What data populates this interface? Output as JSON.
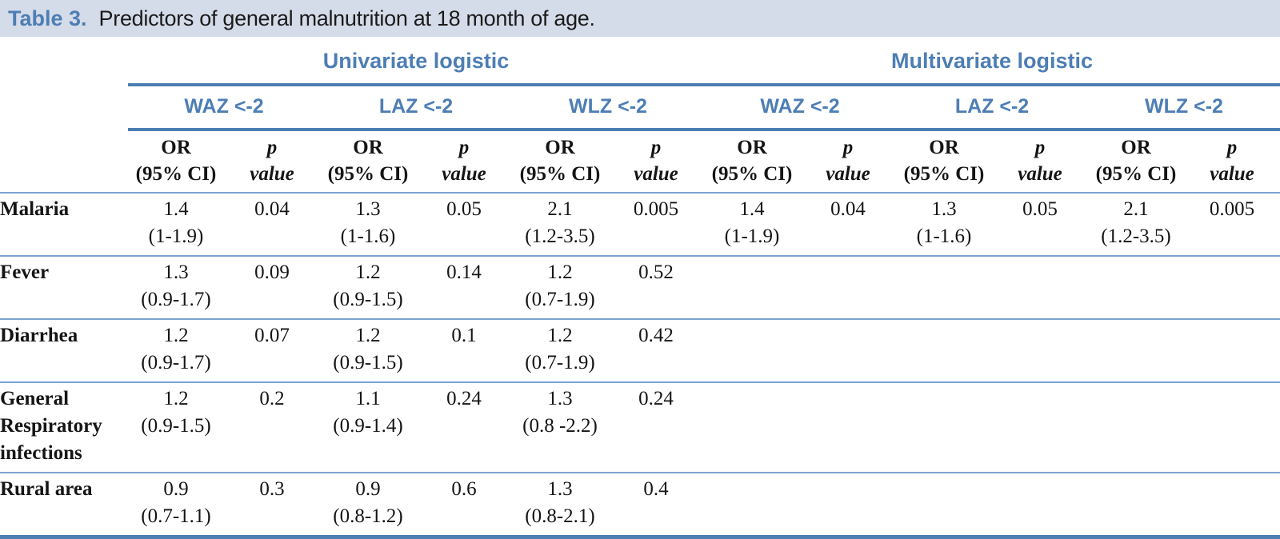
{
  "title": {
    "label": "Table 3.",
    "text": "Predictors of general malnutrition at 18 month of age."
  },
  "table": {
    "group_headers": [
      "Univariate logistic",
      "Multivariate logistic"
    ],
    "outcome_headers": [
      "WAZ <-2",
      "LAZ <-2",
      "WLZ <-2",
      "WAZ <-2",
      "LAZ <-2",
      "WLZ <-2"
    ],
    "column_headers": {
      "or_line1": "OR",
      "or_line2": "(95% CI)",
      "p_line1": "p",
      "p_line2": "value"
    },
    "rows": [
      {
        "label": "Malaria",
        "cells": [
          {
            "or": "1.4",
            "ci": "(1-1.9)",
            "p": "0.04"
          },
          {
            "or": "1.3",
            "ci": "(1-1.6)",
            "p": "0.05"
          },
          {
            "or": "2.1",
            "ci": "(1.2-3.5)",
            "p": "0.005"
          },
          {
            "or": "1.4",
            "ci": "(1-1.9)",
            "p": "0.04"
          },
          {
            "or": "1.3",
            "ci": "(1-1.6)",
            "p": "0.05"
          },
          {
            "or": "2.1",
            "ci": "(1.2-3.5)",
            "p": "0.005"
          }
        ]
      },
      {
        "label": "Fever",
        "cells": [
          {
            "or": "1.3",
            "ci": "(0.9-1.7)",
            "p": "0.09"
          },
          {
            "or": "1.2",
            "ci": "(0.9-1.5)",
            "p": "0.14"
          },
          {
            "or": "1.2",
            "ci": "(0.7-1.9)",
            "p": "0.52"
          },
          {
            "or": "",
            "ci": "",
            "p": ""
          },
          {
            "or": "",
            "ci": "",
            "p": ""
          },
          {
            "or": "",
            "ci": "",
            "p": ""
          }
        ]
      },
      {
        "label": "Diarrhea",
        "cells": [
          {
            "or": "1.2",
            "ci": "(0.9-1.7)",
            "p": "0.07"
          },
          {
            "or": "1.2",
            "ci": "(0.9-1.5)",
            "p": "0.1"
          },
          {
            "or": "1.2",
            "ci": "(0.7-1.9)",
            "p": "0.42"
          },
          {
            "or": "",
            "ci": "",
            "p": ""
          },
          {
            "or": "",
            "ci": "",
            "p": ""
          },
          {
            "or": "",
            "ci": "",
            "p": ""
          }
        ]
      },
      {
        "label": "General Respiratory infections",
        "cells": [
          {
            "or": "1.2",
            "ci": "(0.9-1.5)",
            "p": "0.2"
          },
          {
            "or": "1.1",
            "ci": "(0.9-1.4)",
            "p": "0.24"
          },
          {
            "or": "1.3",
            "ci": "(0.8 -2.2)",
            "p": "0.24"
          },
          {
            "or": "",
            "ci": "",
            "p": ""
          },
          {
            "or": "",
            "ci": "",
            "p": ""
          },
          {
            "or": "",
            "ci": "",
            "p": ""
          }
        ]
      },
      {
        "label": "Rural area",
        "cells": [
          {
            "or": "0.9",
            "ci": "(0.7-1.1)",
            "p": "0.3"
          },
          {
            "or": "0.9",
            "ci": "(0.8-1.2)",
            "p": "0.6"
          },
          {
            "or": "1.3",
            "ci": "(0.8-2.1)",
            "p": "0.4"
          },
          {
            "or": "",
            "ci": "",
            "p": ""
          },
          {
            "or": "",
            "ci": "",
            "p": ""
          },
          {
            "or": "",
            "ci": "",
            "p": ""
          }
        ]
      }
    ]
  },
  "colors": {
    "accent_blue": "#4d7eb4",
    "rule_heavy": "#4c7db3",
    "rule_light": "#7ba3cf",
    "band_bg": "#d4dbe9"
  }
}
